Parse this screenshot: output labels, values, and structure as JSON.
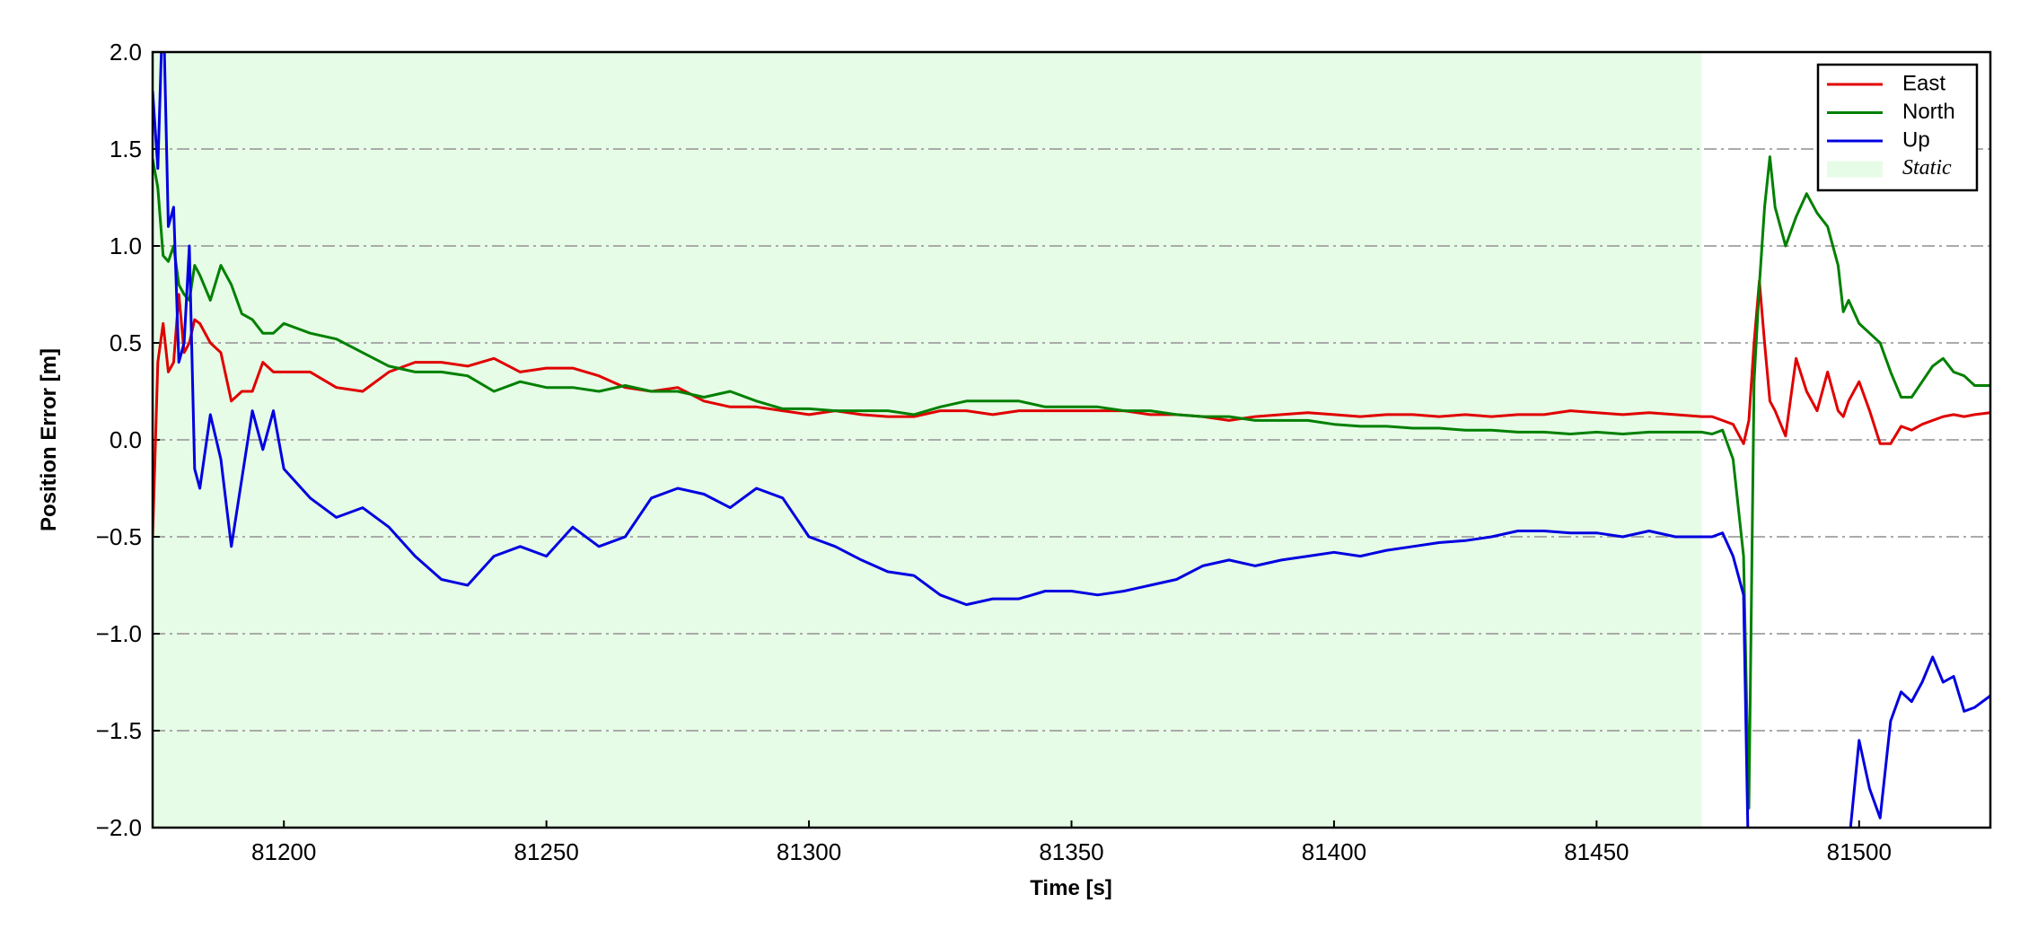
{
  "chart_data": {
    "type": "line",
    "xlabel": "Time [s]",
    "ylabel": "Position Error [m]",
    "xlim": [
      81175,
      81525
    ],
    "ylim": [
      -2,
      2
    ],
    "xticks": [
      81200,
      81250,
      81300,
      81350,
      81400,
      81450,
      81500
    ],
    "yticks": [
      {
        "value": -2,
        "label": "−2.0"
      },
      {
        "value": -1.5,
        "label": "−1.5"
      },
      {
        "value": -1,
        "label": "−1.0"
      },
      {
        "value": -0.5,
        "label": "−0.5"
      },
      {
        "value": 0,
        "label": "0.0"
      },
      {
        "value": 0.5,
        "label": "0.5"
      },
      {
        "value": 1,
        "label": "1.0"
      },
      {
        "value": 1.5,
        "label": "1.5"
      },
      {
        "value": 2,
        "label": "2.0"
      }
    ],
    "grid": true,
    "legend": "upper right",
    "static": {
      "name": "Static",
      "range": [
        81175,
        81470
      ],
      "color": "#e6fce6"
    },
    "x": [
      81175,
      81176,
      81177,
      81178,
      81179,
      81180,
      81181,
      81182,
      81183,
      81184,
      81186,
      81188,
      81190,
      81192,
      81194,
      81196,
      81198,
      81200,
      81205,
      81210,
      81215,
      81220,
      81225,
      81230,
      81235,
      81240,
      81245,
      81250,
      81255,
      81260,
      81265,
      81270,
      81275,
      81280,
      81285,
      81290,
      81295,
      81300,
      81305,
      81310,
      81315,
      81320,
      81325,
      81330,
      81335,
      81340,
      81345,
      81350,
      81355,
      81360,
      81365,
      81370,
      81375,
      81380,
      81385,
      81390,
      81395,
      81400,
      81405,
      81410,
      81415,
      81420,
      81425,
      81430,
      81435,
      81440,
      81445,
      81450,
      81455,
      81460,
      81465,
      81470,
      81472,
      81474,
      81476,
      81478,
      81479,
      81480,
      81481,
      81482,
      81483,
      81484,
      81486,
      81488,
      81490,
      81492,
      81494,
      81496,
      81497,
      81498,
      81500,
      81502,
      81504,
      81506,
      81508,
      81510,
      81512,
      81514,
      81516,
      81518,
      81520,
      81522,
      81525
    ],
    "series": [
      {
        "name": "East",
        "color": "#e00000",
        "values": [
          -0.5,
          0.4,
          0.6,
          0.35,
          0.4,
          0.75,
          0.45,
          0.5,
          0.62,
          0.6,
          0.5,
          0.45,
          0.2,
          0.25,
          0.25,
          0.4,
          0.35,
          0.35,
          0.35,
          0.27,
          0.25,
          0.35,
          0.4,
          0.4,
          0.38,
          0.42,
          0.35,
          0.37,
          0.37,
          0.33,
          0.27,
          0.25,
          0.27,
          0.2,
          0.17,
          0.17,
          0.15,
          0.13,
          0.15,
          0.13,
          0.12,
          0.12,
          0.15,
          0.15,
          0.13,
          0.15,
          0.15,
          0.15,
          0.15,
          0.15,
          0.13,
          0.13,
          0.12,
          0.1,
          0.12,
          0.13,
          0.14,
          0.13,
          0.12,
          0.13,
          0.13,
          0.12,
          0.13,
          0.12,
          0.13,
          0.13,
          0.15,
          0.14,
          0.13,
          0.14,
          0.13,
          0.12,
          0.12,
          0.1,
          0.08,
          -0.02,
          0.1,
          0.5,
          0.82,
          0.5,
          0.2,
          0.15,
          0.02,
          0.42,
          0.25,
          0.15,
          0.35,
          0.15,
          0.12,
          0.2,
          0.3,
          0.15,
          -0.02,
          -0.02,
          0.07,
          0.05,
          0.08,
          0.1,
          0.12,
          0.13,
          0.12,
          0.13,
          0.14
        ]
      },
      {
        "name": "North",
        "color": "#008000",
        "values": [
          1.45,
          1.3,
          0.95,
          0.92,
          1.0,
          0.8,
          0.75,
          0.72,
          0.9,
          0.85,
          0.72,
          0.9,
          0.8,
          0.65,
          0.62,
          0.55,
          0.55,
          0.6,
          0.55,
          0.52,
          0.45,
          0.38,
          0.35,
          0.35,
          0.33,
          0.25,
          0.3,
          0.27,
          0.27,
          0.25,
          0.28,
          0.25,
          0.25,
          0.22,
          0.25,
          0.2,
          0.16,
          0.16,
          0.15,
          0.15,
          0.15,
          0.13,
          0.17,
          0.2,
          0.2,
          0.2,
          0.17,
          0.17,
          0.17,
          0.15,
          0.15,
          0.13,
          0.12,
          0.12,
          0.1,
          0.1,
          0.1,
          0.08,
          0.07,
          0.07,
          0.06,
          0.06,
          0.05,
          0.05,
          0.04,
          0.04,
          0.03,
          0.04,
          0.03,
          0.04,
          0.04,
          0.04,
          0.03,
          0.05,
          -0.1,
          -0.6,
          -1.9,
          0.3,
          0.8,
          1.2,
          1.46,
          1.2,
          1.0,
          1.15,
          1.27,
          1.17,
          1.1,
          0.9,
          0.66,
          0.72,
          0.6,
          0.55,
          0.5,
          0.35,
          0.22,
          0.22,
          0.3,
          0.38,
          0.42,
          0.35,
          0.33,
          0.28,
          0.28
        ]
      },
      {
        "name": "Up",
        "color": "#0000e0",
        "values": [
          1.8,
          1.4,
          2.3,
          1.1,
          1.2,
          0.4,
          0.5,
          1.0,
          -0.15,
          -0.25,
          0.13,
          -0.1,
          -0.55,
          -0.2,
          0.15,
          -0.05,
          0.15,
          -0.15,
          -0.3,
          -0.4,
          -0.35,
          -0.45,
          -0.6,
          -0.72,
          -0.75,
          -0.6,
          -0.55,
          -0.6,
          -0.45,
          -0.55,
          -0.5,
          -0.3,
          -0.25,
          -0.28,
          -0.35,
          -0.25,
          -0.3,
          -0.5,
          -0.55,
          -0.62,
          -0.68,
          -0.7,
          -0.8,
          -0.85,
          -0.82,
          -0.82,
          -0.78,
          -0.78,
          -0.8,
          -0.78,
          -0.75,
          -0.72,
          -0.65,
          -0.62,
          -0.65,
          -0.62,
          -0.6,
          -0.58,
          -0.6,
          -0.57,
          -0.55,
          -0.53,
          -0.52,
          -0.5,
          -0.47,
          -0.47,
          -0.48,
          -0.48,
          -0.5,
          -0.47,
          -0.5,
          -0.5,
          -0.5,
          -0.48,
          -0.6,
          -0.8,
          -2.3,
          null,
          null,
          null,
          null,
          null,
          null,
          null,
          null,
          null,
          null,
          null,
          null,
          -2.1,
          -1.55,
          -1.8,
          -1.95,
          -1.45,
          -1.3,
          -1.35,
          -1.25,
          -1.12,
          -1.25,
          -1.22,
          -1.4,
          -1.38,
          -1.32
        ]
      }
    ]
  }
}
